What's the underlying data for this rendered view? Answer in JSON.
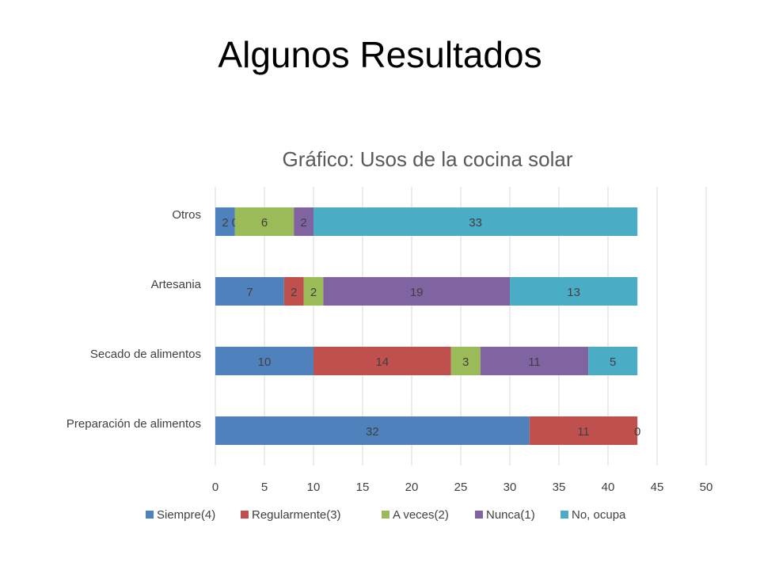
{
  "slide": {
    "title": "Algunos Resultados"
  },
  "chart_data": {
    "type": "bar",
    "orientation": "horizontal",
    "stacked": true,
    "title": "Gráfico: Usos de la cocina solar",
    "categories": [
      "Preparación de alimentos",
      "Secado de alimentos",
      "Artesania",
      "Otros"
    ],
    "series": [
      {
        "name": "Siempre(4)",
        "color": "#4f81bd",
        "values": [
          32,
          10,
          7,
          2
        ]
      },
      {
        "name": "Regularmente(3)",
        "color": "#c0504d",
        "values": [
          11,
          14,
          2,
          0
        ]
      },
      {
        "name": "A veces(2)",
        "color": "#9bbb59",
        "values": [
          0,
          3,
          2,
          6
        ]
      },
      {
        "name": "Nunca(1)",
        "color": "#8064a2",
        "values": [
          0,
          11,
          19,
          2
        ]
      },
      {
        "name": "No, ocupa",
        "color": "#4bacc6",
        "values": [
          0,
          5,
          13,
          33
        ]
      }
    ],
    "data_labels": [
      [
        "32",
        "11",
        "0",
        null,
        null
      ],
      [
        "10",
        "14",
        "3",
        "11",
        "5"
      ],
      [
        "7",
        "2",
        "2",
        "19",
        "13"
      ],
      [
        "2",
        "0",
        "6",
        "2",
        "33"
      ]
    ],
    "xlim": [
      0,
      50
    ],
    "xticks": [
      0,
      5,
      10,
      15,
      20,
      25,
      30,
      35,
      40,
      45,
      50
    ],
    "grid": true,
    "legend": "bottom"
  }
}
